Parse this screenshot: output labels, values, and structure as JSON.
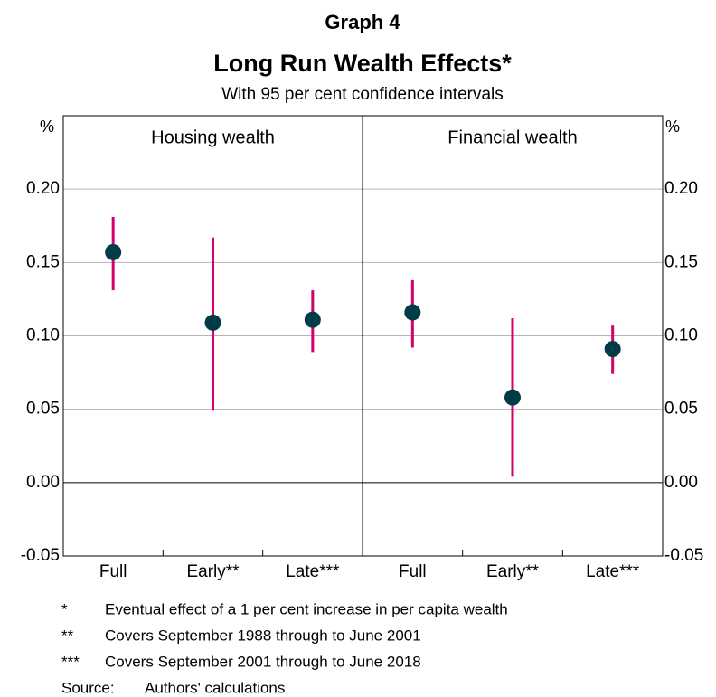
{
  "graph_label": "Graph 4",
  "title": "Long Run Wealth Effects*",
  "subtitle": "With 95 per cent confidence intervals",
  "chart_data": [
    {
      "type": "errorbar",
      "title": "Housing wealth",
      "categories": [
        "Full",
        "Early**",
        "Late***"
      ],
      "values": [
        0.157,
        0.109,
        0.111
      ],
      "lower": [
        0.131,
        0.049,
        0.089
      ],
      "upper": [
        0.181,
        0.167,
        0.131
      ],
      "color": "#003c46",
      "error_color": "#d4006e",
      "ylabel": "%",
      "ylim": [
        -0.05,
        0.25
      ],
      "yticks": [
        -0.05,
        {
          "value": 0,
          "label": "0.00"
        },
        0.05,
        {
          "value": 0.1,
          "label": "0.10"
        },
        0.15,
        {
          "value": 0.2,
          "label": "0.20"
        }
      ],
      "grid": true
    },
    {
      "type": "errorbar",
      "title": "Financial wealth",
      "categories": [
        "Full",
        "Early**",
        "Late***"
      ],
      "values": [
        0.116,
        0.058,
        0.091
      ],
      "lower": [
        0.092,
        0.004,
        0.074
      ],
      "upper": [
        0.138,
        0.112,
        0.107
      ],
      "color": "#003c46",
      "error_color": "#d4006e",
      "y2label": "%",
      "y2lim": [
        -0.05,
        0.25
      ],
      "y2ticks": [
        -0.05,
        {
          "value": 0,
          "label": "0.00"
        },
        0.05,
        {
          "value": 0.1,
          "label": "0.10"
        },
        0.15,
        {
          "value": 0.2,
          "label": "0.20"
        }
      ],
      "grid": true
    }
  ],
  "notes": [
    {
      "mark": "*",
      "text": "Eventual effect of a 1 per cent increase in per capita wealth"
    },
    {
      "mark": "**",
      "text": "Covers September 1988 through to June 2001"
    },
    {
      "mark": "***",
      "text": "Covers September 2001 through to June 2018"
    }
  ],
  "source": {
    "label": "Source:",
    "text": "Authors' calculations"
  }
}
